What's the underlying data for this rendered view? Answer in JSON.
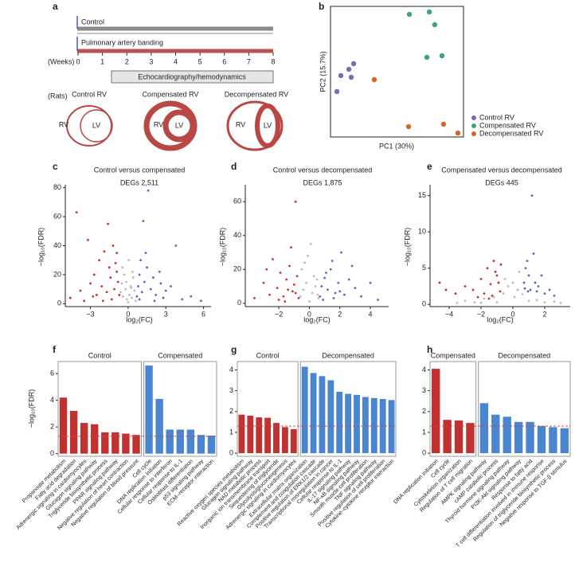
{
  "panel_labels": {
    "a": "a",
    "b": "b",
    "c": "c",
    "d": "d",
    "e": "e",
    "f": "f",
    "g": "g",
    "h": "h"
  },
  "schematic": {
    "control_label": "Control",
    "banding_label": "Pulmonary artery banding",
    "units": "(Weeks)",
    "ticks": [
      0,
      1,
      2,
      3,
      4,
      5,
      6,
      7,
      8
    ],
    "assessment": "Echocardiography/hemodynamics",
    "rats_label": "(Rats)",
    "hearts": [
      {
        "title": "Control RV",
        "rv": "RV",
        "lv": "LV"
      },
      {
        "title": "Compensated RV",
        "rv": "RV",
        "lv": "LV"
      },
      {
        "title": "Decompensated RV",
        "rv": "RV",
        "lv": "LV"
      }
    ]
  },
  "chart_data": [
    {
      "type": "scatter",
      "xlabel": "PC1 (30%)",
      "ylabel": "PC2 (15.7%)",
      "xlim": [
        0,
        100
      ],
      "ylim": [
        0,
        100
      ],
      "box": true,
      "legend": "right",
      "series": [
        {
          "name": "Control RV",
          "color": "#7b6bb5",
          "x": [
            4.8,
            7.8,
            13.8,
            17.4,
            15.6
          ],
          "values": [
            34.8,
            47,
            51.8,
            56.1,
            45.7
          ]
        },
        {
          "name": "Compensated RV",
          "color": "#3aa57a",
          "x": [
            59.3,
            74.3,
            78.4,
            72.5,
            83.8
          ],
          "values": [
            93.9,
            95.7,
            86,
            61,
            62.2
          ]
        },
        {
          "name": "Decompensated RV",
          "color": "#d9642b",
          "x": [
            32.9,
            58.7,
            85,
            95.8
          ],
          "values": [
            43.9,
            7.9,
            9.8,
            3
          ]
        }
      ]
    },
    {
      "type": "scatter",
      "title": "Control versus compensated",
      "subtitle": "DEGs 2,511",
      "xlabel": "log₂(FC)",
      "ylabel": "−log₁₀(FDR)",
      "xlim": [
        -5,
        6.6
      ],
      "ylim": [
        -2,
        82
      ],
      "xticks": [
        {
          "value": -3,
          "label": "−3"
        },
        0,
        3,
        6
      ],
      "yticks": [
        0,
        20,
        40,
        60,
        80
      ],
      "series": [
        {
          "color": "#c8302e",
          "x": [
            -4.6,
            -4.1,
            -3.8,
            -3.5,
            -3.2,
            -3.0,
            -2.7,
            -2.5,
            -2.3,
            -2.1,
            -1.9,
            -1.7,
            -1.5,
            -1.4,
            -1.2,
            -1.1,
            -1.0,
            -0.9,
            -0.8,
            -0.7,
            -1.3,
            -2.0,
            -1.6,
            -0.9,
            -2.8
          ],
          "values": [
            4,
            63,
            9,
            2,
            44,
            14,
            20,
            6,
            30,
            12,
            36,
            8,
            25,
            18,
            40,
            10,
            28,
            22,
            15,
            6,
            3,
            2,
            55,
            35,
            5
          ]
        },
        {
          "color": "#5566c0",
          "x": [
            0.7,
            0.8,
            0.9,
            1.0,
            1.1,
            1.3,
            1.5,
            1.6,
            1.8,
            2.0,
            2.2,
            2.5,
            2.8,
            3.0,
            3.4,
            3.8,
            4.3,
            5.0,
            5.8,
            1.2,
            0.9,
            1.4,
            2.1,
            2.6
          ],
          "values": [
            5,
            12,
            20,
            30,
            8,
            15,
            25,
            78,
            10,
            18,
            6,
            22,
            4,
            9,
            12,
            40,
            3,
            5,
            2,
            57,
            3,
            35,
            2,
            14
          ]
        },
        {
          "color": "#bbbbbb",
          "x": [
            -0.6,
            -0.5,
            -0.4,
            -0.3,
            -0.2,
            -0.1,
            0,
            0.1,
            0.2,
            0.3,
            0.4,
            0.5,
            0.6,
            -0.45,
            0.35,
            -0.15,
            0.05,
            0.25
          ],
          "values": [
            8,
            14,
            5,
            20,
            10,
            3,
            1,
            6,
            12,
            4,
            18,
            9,
            2,
            25,
            22,
            15,
            30,
            11
          ]
        }
      ]
    },
    {
      "type": "scatter",
      "title": "Control versus decompensated",
      "subtitle": "DEGs 1,875",
      "xlabel": "log₂(FC)",
      "ylabel": "−log₁₀(FDR)",
      "xlim": [
        -4.2,
        5.2
      ],
      "ylim": [
        -2,
        70
      ],
      "xticks": [
        {
          "value": -2,
          "label": "−2"
        },
        0,
        2,
        4
      ],
      "yticks": [
        0,
        20,
        40,
        60
      ],
      "series": [
        {
          "color": "#c8302e",
          "x": [
            -3.6,
            -3.0,
            -2.6,
            -2.4,
            -2.1,
            -1.9,
            -1.7,
            -1.5,
            -1.3,
            -1.1,
            -1.0,
            -0.9,
            -0.8,
            -0.7,
            -1.2,
            -2.0,
            -0.9,
            -1.6,
            -2.8,
            -1.4
          ],
          "values": [
            3,
            12,
            5,
            26,
            9,
            18,
            4,
            14,
            22,
            7,
            11,
            60,
            16,
            3,
            33,
            2,
            6,
            1,
            20,
            8
          ]
        },
        {
          "color": "#5566c0",
          "x": [
            0.7,
            0.8,
            1.0,
            1.2,
            1.4,
            1.5,
            1.7,
            1.9,
            2.1,
            2.3,
            2.6,
            3.0,
            3.4,
            4.0,
            4.5,
            1.1,
            1.6,
            2.0,
            0.9,
            2.8
          ],
          "values": [
            4,
            10,
            15,
            8,
            20,
            25,
            6,
            12,
            30,
            5,
            14,
            9,
            4,
            12,
            2,
            18,
            3,
            7,
            2,
            22
          ]
        },
        {
          "color": "#bbbbbb",
          "x": [
            -0.6,
            -0.4,
            -0.2,
            0,
            0.2,
            0.4,
            0.6,
            -0.5,
            0.5,
            -0.3,
            0.1,
            0.3,
            -0.1,
            0.55
          ],
          "values": [
            4,
            8,
            12,
            1,
            6,
            10,
            3,
            20,
            14,
            24,
            35,
            16,
            28,
            5
          ]
        }
      ]
    },
    {
      "type": "scatter",
      "title": "Compensated versus decompensated",
      "subtitle": "DEGs 445",
      "xlabel": "log₂(FC)",
      "ylabel": "−log₁₀(FDR)",
      "xlim": [
        -5.2,
        3.6
      ],
      "ylim": [
        -0.3,
        16.5
      ],
      "xticks": [
        {
          "value": -4,
          "label": "−4"
        },
        {
          "value": -2,
          "label": "−2"
        },
        0,
        2
      ],
      "yticks": [
        0,
        5,
        10,
        15
      ],
      "series": [
        {
          "color": "#c8302e",
          "x": [
            -4.6,
            -4.2,
            -3.6,
            -3.0,
            -2.5,
            -2.0,
            -1.8,
            -1.6,
            -1.4,
            -1.2,
            -1.0,
            -0.9,
            -0.8,
            -1.1,
            -1.5,
            -2.2,
            -0.75,
            -1.3
          ],
          "values": [
            3,
            2,
            1.5,
            2.5,
            2,
            3.5,
            1.5,
            5,
            2.8,
            6,
            4,
            3,
            1.8,
            4.5,
            0.8,
            1,
            5.5,
            1.2
          ]
        },
        {
          "color": "#5566c0",
          "x": [
            0.7,
            0.8,
            0.9,
            1.0,
            1.1,
            1.2,
            1.4,
            1.6,
            1.8,
            2.0,
            2.3,
            2.6,
            1.3,
            0.95,
            0.75,
            1.5
          ],
          "values": [
            3,
            5,
            6,
            4,
            2,
            15,
            3,
            2.5,
            4,
            1.5,
            2,
            1.2,
            7,
            1.8,
            2.2,
            1.8
          ]
        },
        {
          "color": "#bbbbbb",
          "x": [
            -3.5,
            -3.0,
            -2.4,
            -1.8,
            -1.2,
            -0.6,
            -0.3,
            0,
            0.3,
            0.6,
            1.0,
            1.5,
            2.0,
            2.6,
            3.0,
            -0.5,
            0.4,
            -1.0,
            0.1,
            -2.0
          ],
          "values": [
            0.2,
            0.5,
            0.3,
            0.8,
            1,
            1.5,
            2.5,
            3,
            2,
            1.4,
            0.5,
            0.6,
            0.3,
            0.4,
            0.2,
            3.5,
            4.5,
            0.3,
            1,
            0.2
          ]
        }
      ]
    },
    {
      "type": "bar",
      "ylabel": "−log₁₀(FDR)",
      "ylim": [
        -0.2,
        6.9
      ],
      "yticks": [
        0,
        2,
        4,
        6
      ],
      "threshold": 1.3,
      "series": [
        {
          "name": "Control",
          "color": "#c0312f",
          "categories": [
            "Propanoate metabolism",
            "Fatty acid degradation",
            "Adrenergic signaling in cardiomyocytes",
            "Glucagon signaling pathway",
            "Triglyceride biosynthetic process",
            "PPAR signaling pathway",
            "Negative regulation of heart contraction",
            "Negative regulation of blood pressure"
          ],
          "values": [
            4.2,
            3.2,
            2.3,
            2.2,
            1.6,
            1.6,
            1.5,
            1.4
          ]
        },
        {
          "name": "Compensated",
          "color": "#4a86cf",
          "categories": [
            "Cell cycle",
            "DNA replication initiation",
            "Cellular response to interferon",
            "Cellular response to IL-1",
            "Osteoblast differentiation",
            "p53 signaling pathway",
            "ECM–receptor interaction"
          ],
          "values": [
            6.6,
            4.1,
            1.8,
            1.8,
            1.8,
            1.4,
            1.35
          ]
        }
      ]
    },
    {
      "type": "bar",
      "ylim": [
        -0.15,
        4.4
      ],
      "yticks": [
        0,
        1,
        2,
        3,
        4
      ],
      "threshold": 1.3,
      "series": [
        {
          "name": "Control",
          "color": "#c0312f",
          "categories": [
            "Reactive oxygen species metabolism",
            "Glucagon signaling pathway",
            "NAD metabolic process",
            "Inorganic ion transmembrane transport",
            "Sequestering of triglyceride",
            "Glycolysis/gluconeogenesis",
            "Adrenergic signaling in cardiomyocytes"
          ],
          "values": [
            1.85,
            1.8,
            1.72,
            1.7,
            1.45,
            1.25,
            1.15
          ]
        },
        {
          "name": "Decompensated",
          "color": "#4a86cf",
          "categories": [
            "Extracellular matrix organization",
            "Complement and coagulation cascade",
            "Positive regulation of ERK1/2 cascade",
            "Transcriptional misregulation in cancer",
            "Cellular response to IL-1",
            "IL-17 signaling pathway",
            "NF-κB signaling pathway",
            "Smooth muscle cell proliferation",
            "TNF signaling pathway",
            "Positive regulation of cell proliferation",
            "Cytokine–cytokine receptor interaction"
          ],
          "values": [
            4.15,
            3.85,
            3.7,
            3.5,
            2.95,
            2.85,
            2.8,
            2.7,
            2.65,
            2.6,
            2.55
          ]
        }
      ]
    },
    {
      "type": "bar",
      "ylim": [
        -0.15,
        4.4
      ],
      "yticks": [
        0,
        1,
        2,
        3,
        4
      ],
      "threshold": 1.3,
      "series": [
        {
          "name": "Compensated",
          "color": "#c0312f",
          "categories": [
            "DNA replication initiation",
            "Cell cycle",
            "Cytoskeleton organization",
            "Regulation of T cell migration"
          ],
          "values": [
            4.05,
            1.6,
            1.57,
            1.45
          ]
        },
        {
          "name": "Decompensated",
          "color": "#4a86cf",
          "categories": [
            "AMPK signaling pathway",
            "cAMP catabolic process",
            "Thyroid hormone signaling pathway",
            "PI3K-Akt signaling pathway",
            "Response to fatty acid",
            "T cell differentiation involved in immune response",
            "Regulation of triglyceride biosynthetic process",
            "Negative response to TGF-β stimulus"
          ],
          "values": [
            2.4,
            1.85,
            1.75,
            1.5,
            1.5,
            1.3,
            1.25,
            1.2
          ]
        }
      ]
    }
  ]
}
